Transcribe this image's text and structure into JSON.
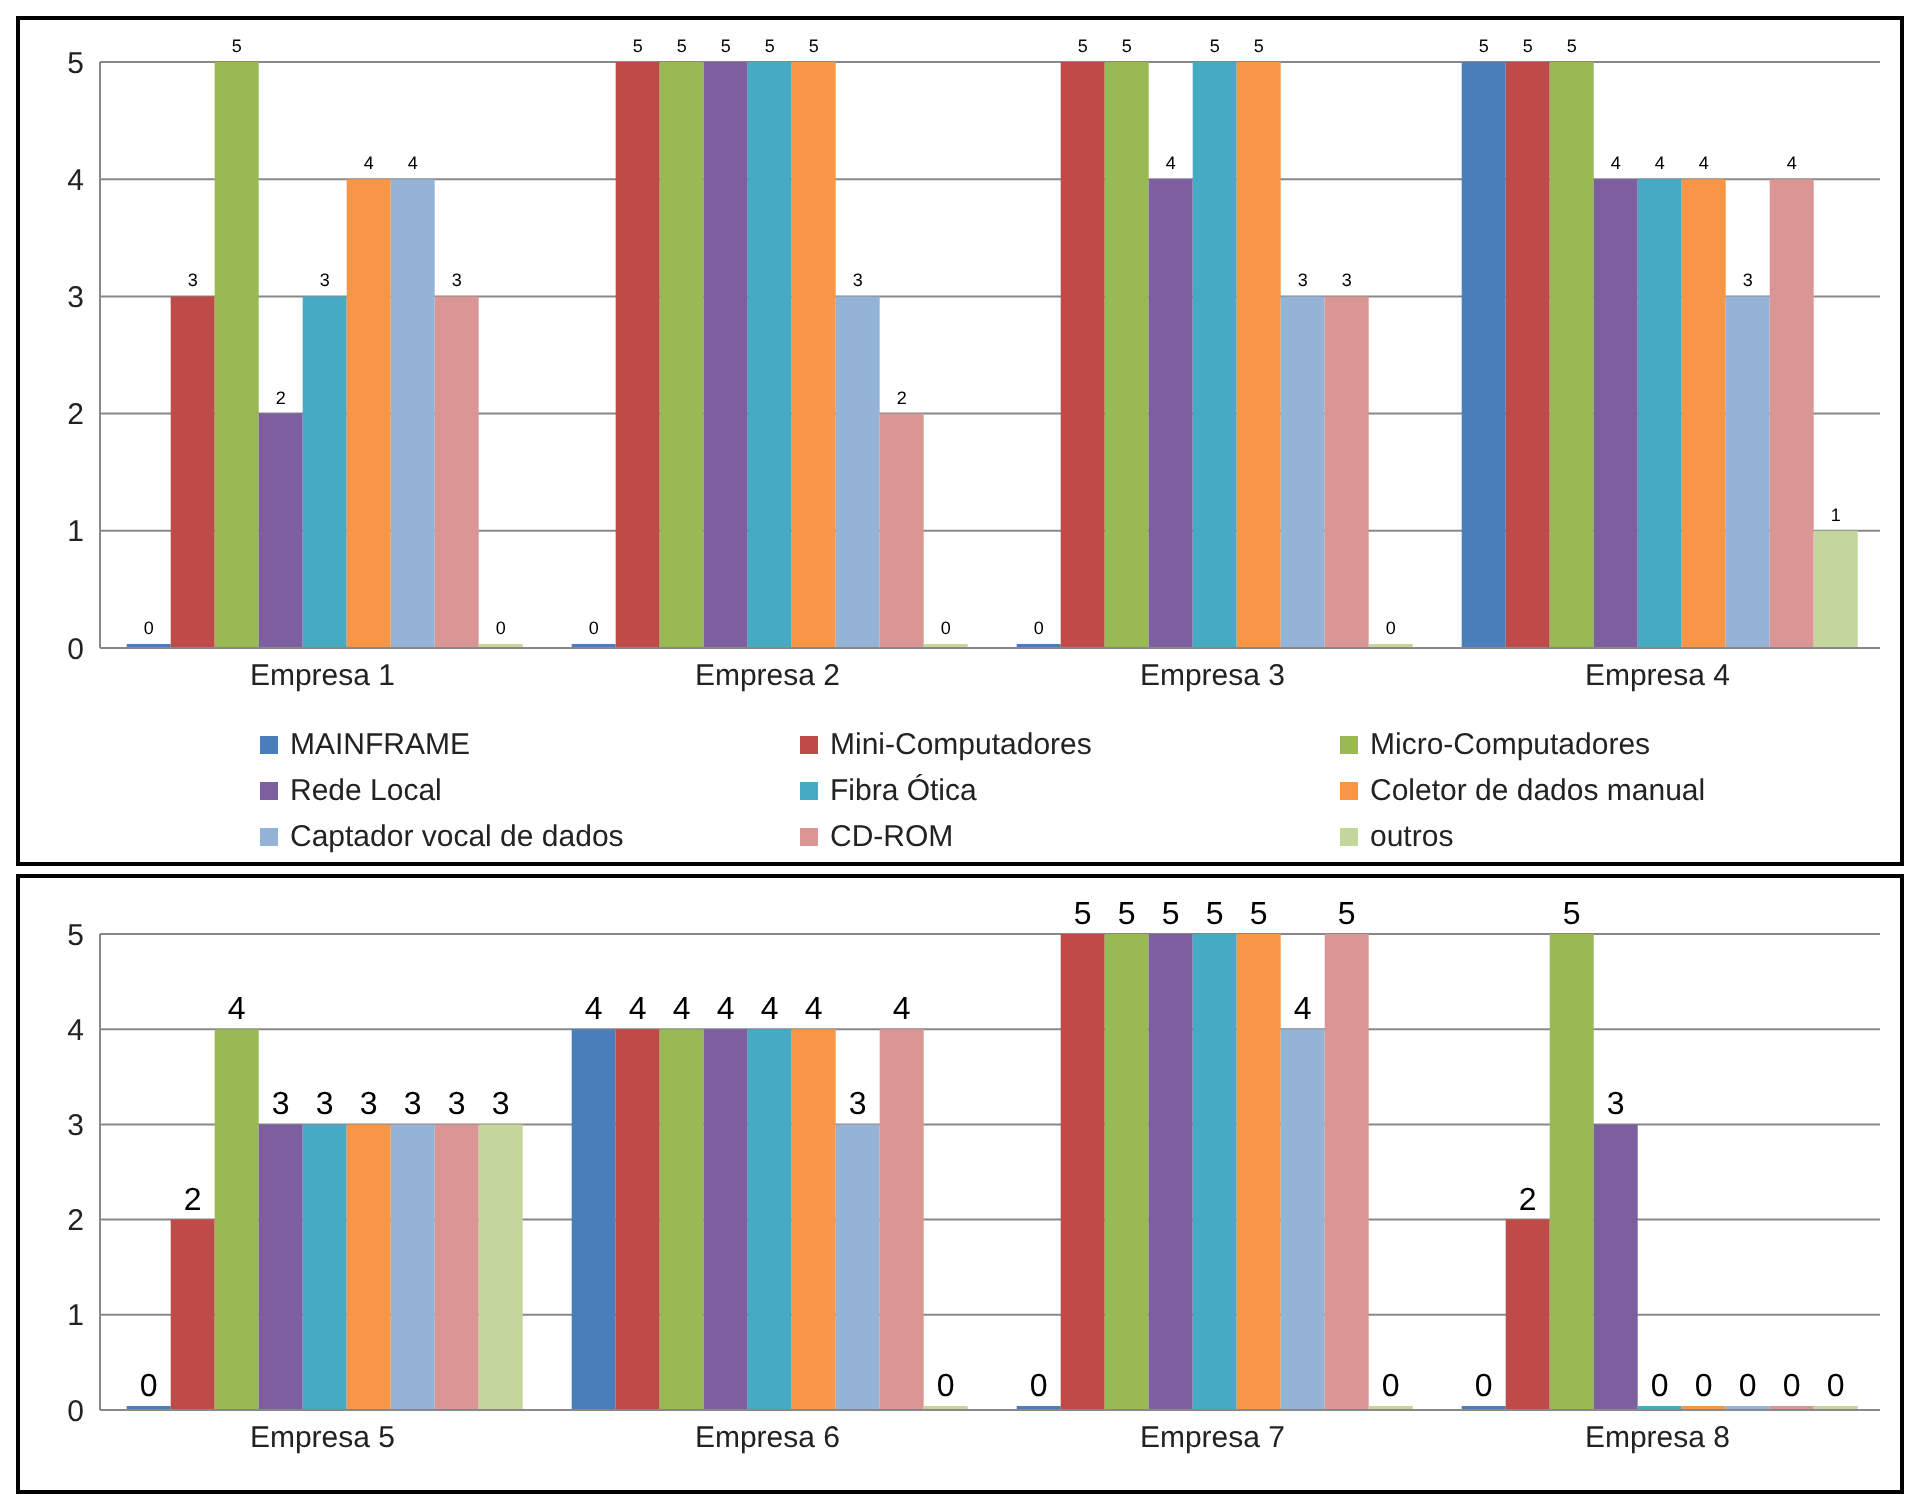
{
  "chart_data": [
    {
      "type": "bar",
      "categories": [
        "Empresa 1",
        "Empresa 2",
        "Empresa 3",
        "Empresa 4"
      ],
      "series": [
        {
          "name": "MAINFRAME",
          "color": "#4a7ebb",
          "values": [
            0,
            0,
            0,
            5
          ]
        },
        {
          "name": "Mini-Computadores",
          "color": "#be4b48",
          "values": [
            3,
            5,
            5,
            5
          ]
        },
        {
          "name": "Micro-Computadores",
          "color": "#98b954",
          "values": [
            5,
            5,
            5,
            5
          ]
        },
        {
          "name": "Rede Local",
          "color": "#7d5fa0",
          "values": [
            2,
            5,
            4,
            4
          ]
        },
        {
          "name": "Fibra Ótica",
          "color": "#46aac5",
          "values": [
            3,
            5,
            5,
            4
          ]
        },
        {
          "name": "Coletor de dados manual",
          "color": "#f79646",
          "values": [
            4,
            5,
            5,
            4
          ]
        },
        {
          "name": "Captador vocal de dados",
          "color": "#95b3d7",
          "values": [
            4,
            3,
            3,
            3
          ]
        },
        {
          "name": "CD-ROM",
          "color": "#d99694",
          "values": [
            3,
            2,
            3,
            4
          ]
        },
        {
          "name": "outros",
          "color": "#c3d69b",
          "values": [
            0,
            0,
            0,
            1
          ]
        }
      ],
      "ylim": [
        0,
        5
      ],
      "yticks": [
        0,
        1,
        2,
        3,
        4,
        5
      ],
      "grid": "y",
      "legend": "bottom",
      "data_labels": true
    },
    {
      "type": "bar",
      "categories": [
        "Empresa 5",
        "Empresa 6",
        "Empresa 7",
        "Empresa 8"
      ],
      "series": [
        {
          "color": "#4a7ebb",
          "values": [
            0,
            4,
            0,
            0
          ]
        },
        {
          "color": "#be4b48",
          "values": [
            2,
            4,
            5,
            2
          ]
        },
        {
          "color": "#98b954",
          "values": [
            4,
            4,
            5,
            5
          ]
        },
        {
          "color": "#7d5fa0",
          "values": [
            3,
            4,
            5,
            3
          ]
        },
        {
          "color": "#46aac5",
          "values": [
            3,
            4,
            5,
            0
          ]
        },
        {
          "color": "#f79646",
          "values": [
            3,
            4,
            5,
            0
          ]
        },
        {
          "color": "#95b3d7",
          "values": [
            3,
            3,
            4,
            0
          ]
        },
        {
          "color": "#d99694",
          "values": [
            3,
            4,
            5,
            0
          ]
        },
        {
          "color": "#c3d69b",
          "values": [
            3,
            0,
            0,
            0
          ]
        }
      ],
      "ylim": [
        0,
        5
      ],
      "yticks": [
        0,
        1,
        2,
        3,
        4,
        5
      ],
      "grid": "y",
      "data_labels": true
    }
  ]
}
